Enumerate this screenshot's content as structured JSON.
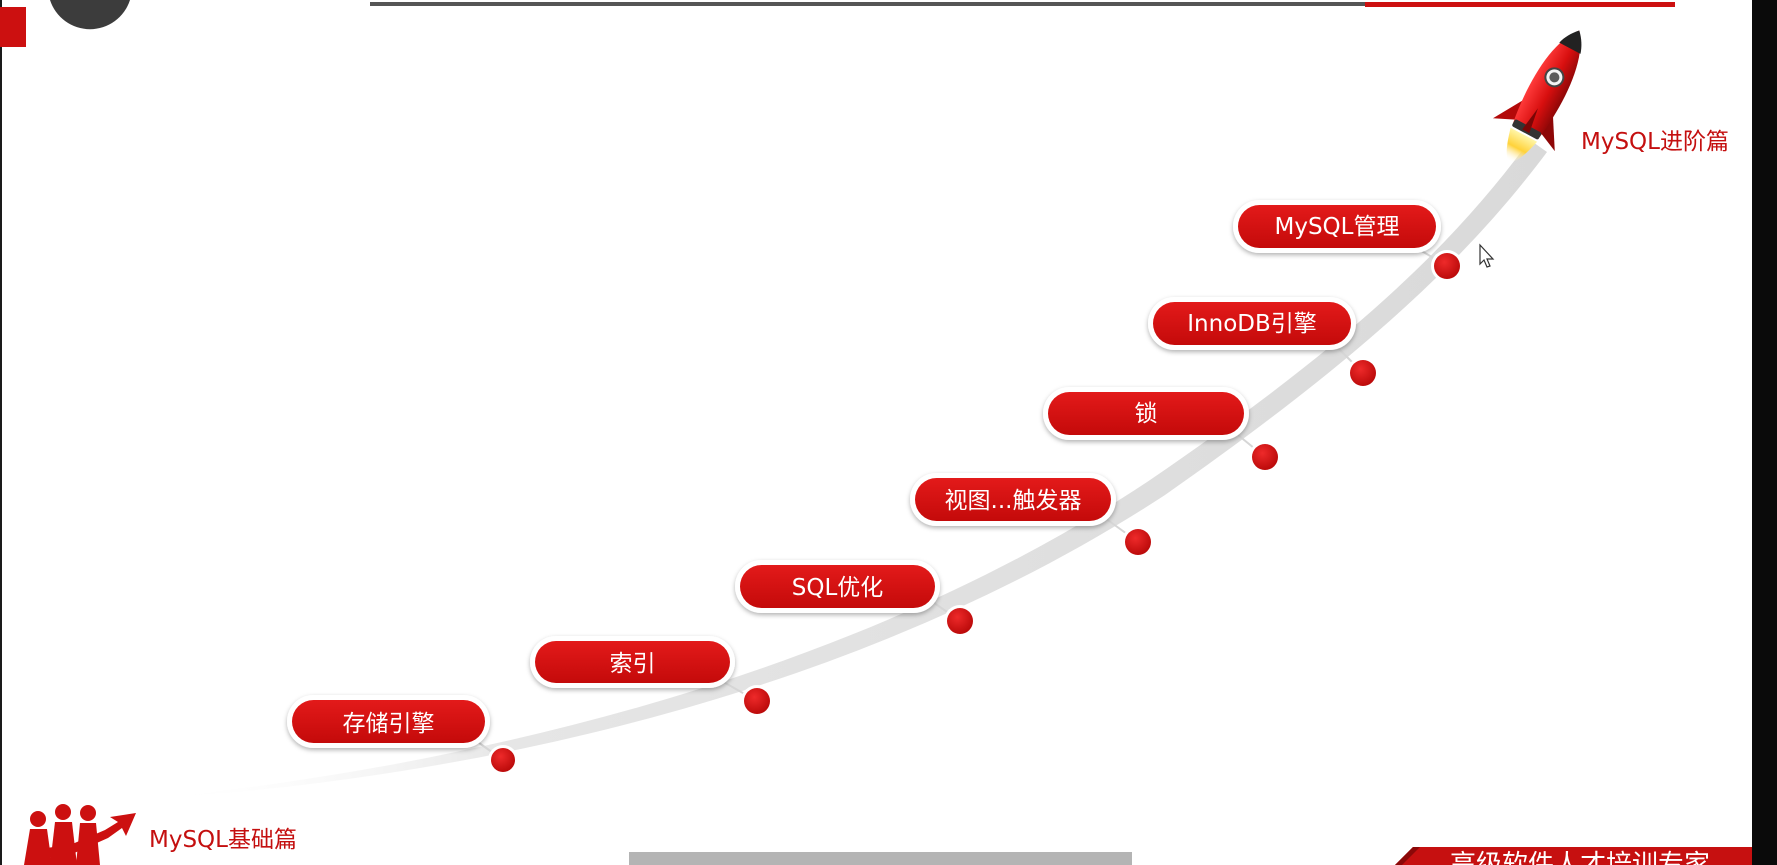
{
  "start_label": "MySQL基础篇",
  "end_label": "MySQL进阶篇",
  "footer_text": "高级软件人才培训专家",
  "milestones": [
    {
      "label": "存储引擎"
    },
    {
      "label": "索引"
    },
    {
      "label": "SQL优化"
    },
    {
      "label": "视图...触发器"
    },
    {
      "label": "锁"
    },
    {
      "label": "InnoDB引擎"
    },
    {
      "label": "MySQL管理"
    }
  ],
  "colors": {
    "accent": "#d10f0f",
    "text_red": "#c40f0f",
    "track": "#e3e3e3"
  }
}
